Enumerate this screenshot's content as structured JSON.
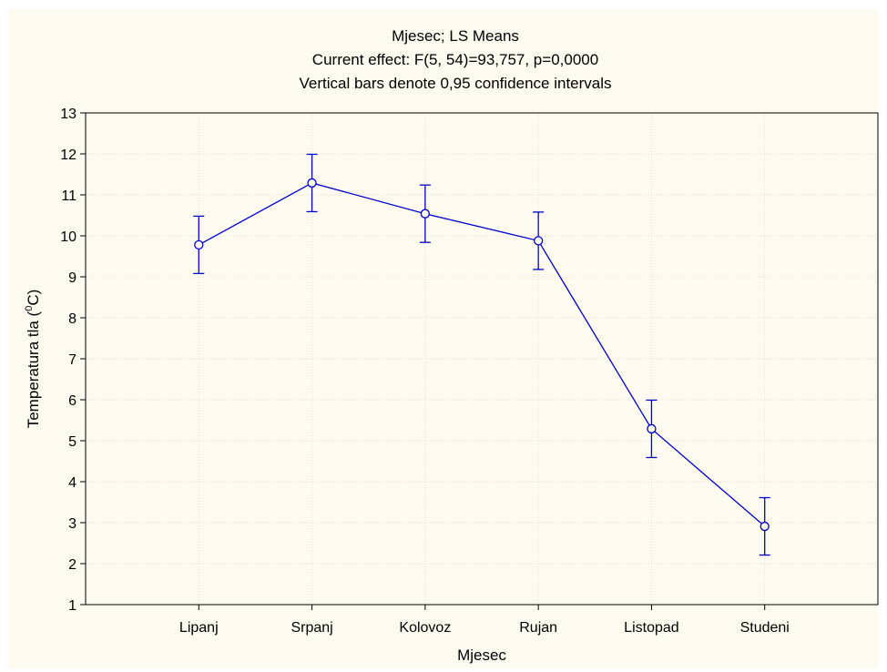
{
  "chart_data": {
    "type": "line",
    "title": "Mjesec; LS Means",
    "subtitle": "Current effect: F(5, 54)=93,757, p=0,0000",
    "note": "Vertical bars denote 0,95 confidence intervals",
    "xlabel": "Mjesec",
    "ylabel": "Temperatura tla (",
    "ylabel_sup": "0",
    "ylabel_end": "C)",
    "categories": [
      "Lipanj",
      "Srpanj",
      "Kolovoz",
      "Rujan",
      "Listopad",
      "Studeni"
    ],
    "series": [
      {
        "values": [
          9.78,
          11.29,
          10.54,
          9.88,
          5.29,
          2.91
        ],
        "ci_lower": [
          9.08,
          10.59,
          9.84,
          9.18,
          4.59,
          2.21
        ],
        "ci_upper": [
          10.48,
          11.99,
          11.24,
          10.58,
          5.99,
          3.61
        ],
        "color": "#0000cc"
      }
    ],
    "ylim": [
      1,
      13
    ],
    "yticks": [
      "1",
      "2",
      "3",
      "4",
      "5",
      "6",
      "7",
      "8",
      "9",
      "10",
      "11",
      "12",
      "13"
    ],
    "grid": true
  }
}
